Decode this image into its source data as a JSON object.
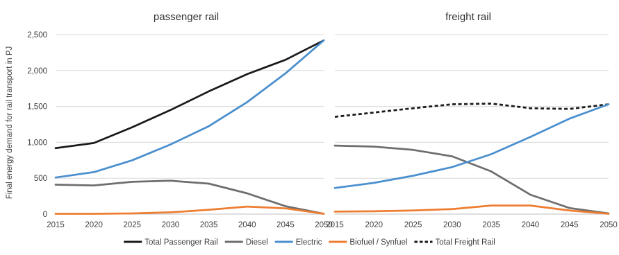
{
  "y_axis_title": "Final energy demand for rail transport in PJ",
  "chart_data": [
    {
      "type": "line",
      "title": "passenger rail",
      "x": [
        2015,
        2020,
        2025,
        2030,
        2035,
        2040,
        2045,
        2050
      ],
      "ylim": [
        0,
        2500
      ],
      "yticks": [
        "0",
        "500",
        "1,000",
        "1,500",
        "2,000",
        "2,500"
      ],
      "ytick_values": [
        0,
        500,
        1000,
        1500,
        2000,
        2500
      ],
      "grid": true,
      "series": [
        {
          "name": "Total Passenger Rail",
          "color": "#1a1a1a",
          "style": "solid",
          "values": [
            920,
            990,
            1210,
            1450,
            1710,
            1950,
            2150,
            2420
          ]
        },
        {
          "name": "Diesel",
          "color": "#6e6e6e",
          "style": "solid",
          "values": [
            410,
            400,
            450,
            465,
            425,
            290,
            110,
            5
          ]
        },
        {
          "name": "Electric",
          "color": "#4a8fce",
          "style": "solid",
          "values": [
            510,
            585,
            750,
            970,
            1225,
            1560,
            1960,
            2420
          ]
        },
        {
          "name": "Biofuel / Synfuel",
          "color": "#ed7d31",
          "style": "solid",
          "values": [
            5,
            5,
            10,
            25,
            60,
            105,
            80,
            5
          ]
        }
      ]
    },
    {
      "type": "line",
      "title": "freight rail",
      "x": [
        2015,
        2020,
        2025,
        2030,
        2035,
        2040,
        2045,
        2050
      ],
      "ylim": [
        0,
        2500
      ],
      "grid": true,
      "series": [
        {
          "name": "Total Freight Rail",
          "color": "#1a1a1a",
          "style": "dashed",
          "values": [
            1355,
            1415,
            1475,
            1530,
            1540,
            1475,
            1465,
            1530
          ]
        },
        {
          "name": "Diesel",
          "color": "#6e6e6e",
          "style": "solid",
          "values": [
            955,
            940,
            895,
            805,
            595,
            270,
            85,
            10
          ]
        },
        {
          "name": "Electric",
          "color": "#4a8fce",
          "style": "solid",
          "values": [
            365,
            435,
            535,
            655,
            835,
            1075,
            1330,
            1530
          ]
        },
        {
          "name": "Biofuel / Synfuel",
          "color": "#ed7d31",
          "style": "solid",
          "values": [
            35,
            40,
            50,
            70,
            120,
            120,
            50,
            5
          ]
        }
      ]
    }
  ],
  "legend": {
    "placement": "bottom",
    "items": [
      {
        "label": "Total Passenger Rail",
        "color": "#1a1a1a",
        "style": "solid"
      },
      {
        "label": "Diesel",
        "color": "#6e6e6e",
        "style": "solid"
      },
      {
        "label": "Electric",
        "color": "#4a8fce",
        "style": "solid"
      },
      {
        "label": "Biofuel / Synfuel",
        "color": "#ed7d31",
        "style": "solid"
      },
      {
        "label": "Total Freight Rail",
        "color": "#1a1a1a",
        "style": "dashed"
      }
    ]
  }
}
